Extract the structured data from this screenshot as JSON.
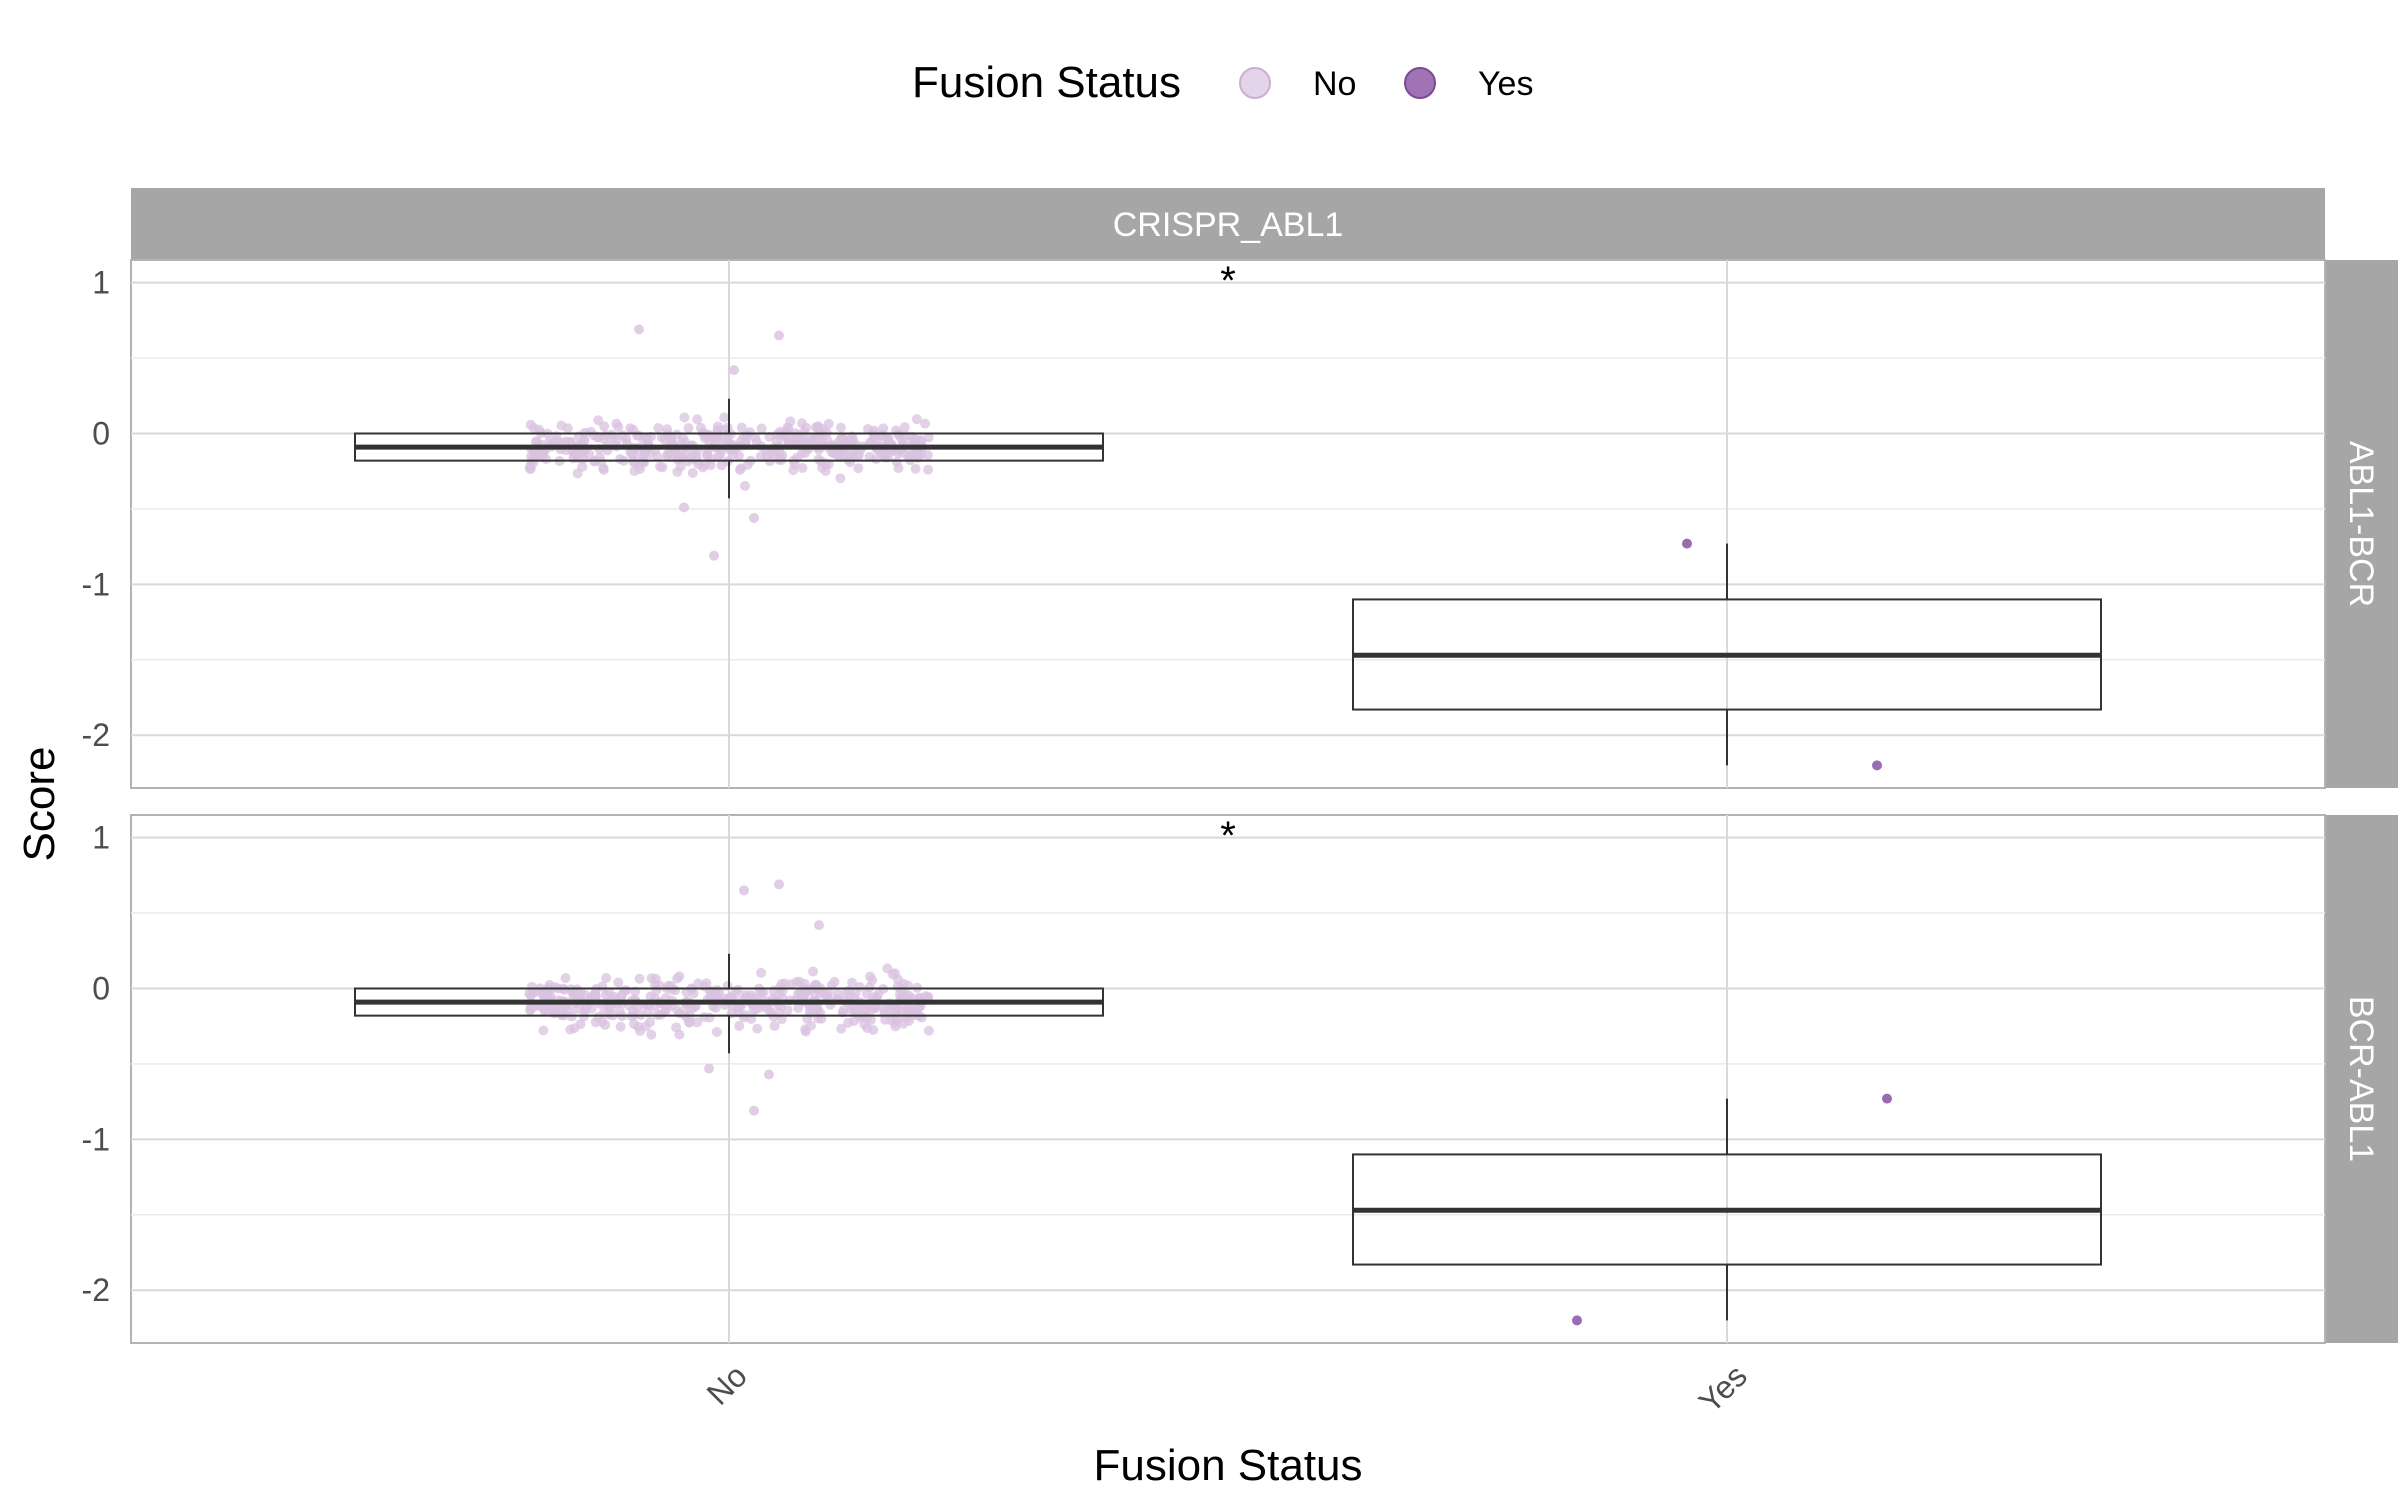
{
  "legend": {
    "title": "Fusion Status",
    "items": [
      {
        "label": "No",
        "color": "#d9c2e0"
      },
      {
        "label": "Yes",
        "color": "#8e5ba8"
      }
    ]
  },
  "x_axis_title": "Fusion Status",
  "y_axis_title": "Score",
  "column_strip": "CRISPR_ABL1",
  "colors": {
    "no_points": "#d9c2e0",
    "yes_points": "#8e5ba8",
    "strip": "#a6a6a6",
    "grid": "#d9d9d9",
    "box": "#333333"
  },
  "chart_data": {
    "type": "box",
    "categories": [
      "No",
      "Yes"
    ],
    "ylim": [
      -2.35,
      1.15
    ],
    "y_ticks": [
      1,
      0,
      -1,
      -2
    ],
    "grid": true,
    "legend_position": "top",
    "panels": [
      {
        "row_label": "ABL1-BCR",
        "significance": "*",
        "boxes": [
          {
            "category": "No",
            "q1": -0.18,
            "median": -0.09,
            "q3": 0.0,
            "whisker_low": -0.43,
            "whisker_high": 0.23
          },
          {
            "category": "Yes",
            "q1": -1.83,
            "median": -1.47,
            "q3": -1.1,
            "whisker_low": -2.2,
            "whisker_high": -0.73
          }
        ],
        "no_points": {
          "count": 420,
          "median": -0.09,
          "spread": 0.14,
          "outliers": [
            [
              -0.18,
              0.69
            ],
            [
              0.1,
              0.65
            ],
            [
              -0.03,
              -0.81
            ],
            [
              0.01,
              0.42
            ],
            [
              0.05,
              -0.56
            ],
            [
              -0.09,
              -0.49
            ]
          ]
        },
        "yes_points": [
          [
            -0.04,
            -0.73
          ],
          [
            0.15,
            -2.2
          ]
        ]
      },
      {
        "row_label": "BCR-ABL1",
        "significance": "*",
        "boxes": [
          {
            "category": "No",
            "q1": -0.18,
            "median": -0.09,
            "q3": 0.0,
            "whisker_low": -0.43,
            "whisker_high": 0.23
          },
          {
            "category": "Yes",
            "q1": -1.83,
            "median": -1.47,
            "q3": -1.1,
            "whisker_low": -2.2,
            "whisker_high": -0.73
          }
        ],
        "no_points": {
          "count": 420,
          "median": -0.09,
          "spread": 0.14,
          "outliers": [
            [
              0.1,
              0.69
            ],
            [
              0.03,
              0.65
            ],
            [
              0.05,
              -0.81
            ],
            [
              0.08,
              -0.57
            ],
            [
              -0.04,
              -0.53
            ],
            [
              0.18,
              0.42
            ]
          ]
        },
        "yes_points": [
          [
            0.16,
            -0.73
          ],
          [
            -0.15,
            -2.2
          ]
        ]
      }
    ]
  }
}
